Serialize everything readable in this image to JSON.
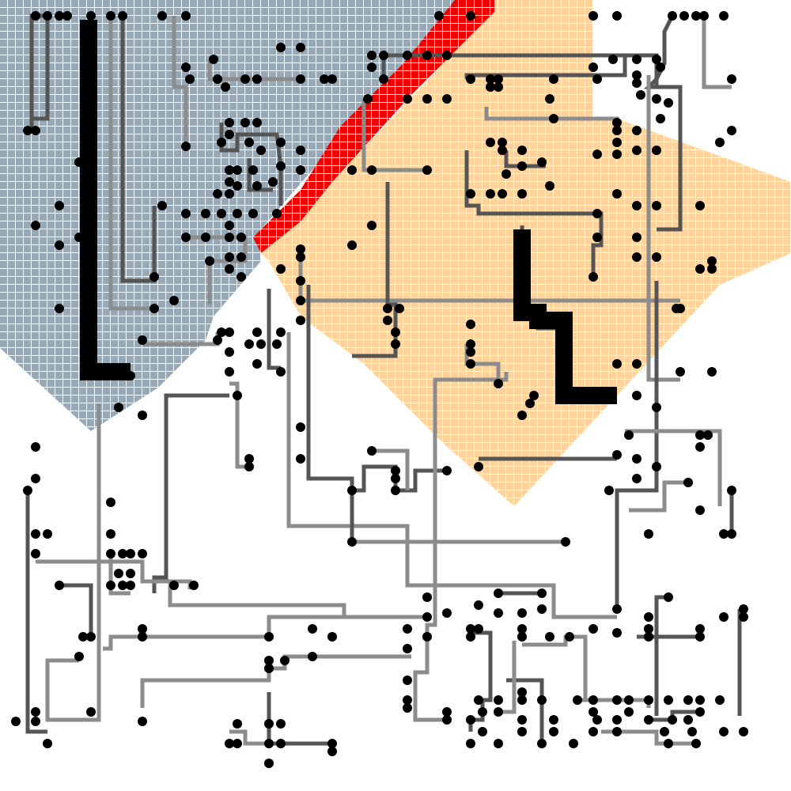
{
  "colors": {
    "background": "#ffffff",
    "region_blue": "#98a8b4",
    "region_orange": "#ffd39b",
    "region_red": "#ee0000",
    "grid_line": "#ffffff",
    "wire_dark": "#555555",
    "wire_light": "#8c8c8c",
    "bus": "#000000",
    "pin": "#000000"
  },
  "regions": [
    {
      "name": "blue-region",
      "color_key": "region_blue"
    },
    {
      "name": "red-region",
      "color_key": "region_red"
    },
    {
      "name": "orange-region",
      "color_key": "region_orange"
    }
  ],
  "wires": [
    {
      "name": "wire-1",
      "tone": "light"
    },
    {
      "name": "wire-2",
      "tone": "dark"
    },
    {
      "name": "wire-3",
      "tone": "light"
    },
    {
      "name": "wire-4",
      "tone": "dark"
    },
    {
      "name": "wire-5",
      "tone": "light"
    },
    {
      "name": "wire-6",
      "tone": "dark"
    },
    {
      "name": "wire-7",
      "tone": "light"
    },
    {
      "name": "wire-8",
      "tone": "dark"
    },
    {
      "name": "wire-9",
      "tone": "light"
    },
    {
      "name": "wire-10",
      "tone": "dark"
    },
    {
      "name": "wire-11",
      "tone": "light"
    },
    {
      "name": "wire-12",
      "tone": "dark"
    },
    {
      "name": "wire-13",
      "tone": "light"
    },
    {
      "name": "wire-14",
      "tone": "dark"
    },
    {
      "name": "wire-15",
      "tone": "light"
    },
    {
      "name": "wire-16",
      "tone": "dark"
    },
    {
      "name": "wire-17",
      "tone": "light"
    },
    {
      "name": "wire-18",
      "tone": "dark"
    },
    {
      "name": "wire-19",
      "tone": "light"
    },
    {
      "name": "wire-20",
      "tone": "dark"
    },
    {
      "name": "wire-21",
      "tone": "light"
    },
    {
      "name": "wire-22",
      "tone": "dark"
    },
    {
      "name": "wire-23",
      "tone": "light"
    },
    {
      "name": "wire-24",
      "tone": "dark"
    },
    {
      "name": "wire-25",
      "tone": "light"
    },
    {
      "name": "wire-26",
      "tone": "dark"
    },
    {
      "name": "wire-27",
      "tone": "light"
    },
    {
      "name": "wire-28",
      "tone": "dark"
    },
    {
      "name": "wire-29",
      "tone": "light"
    },
    {
      "name": "wire-30",
      "tone": "dark"
    },
    {
      "name": "wire-31",
      "tone": "light"
    },
    {
      "name": "wire-32",
      "tone": "dark"
    },
    {
      "name": "wire-33",
      "tone": "light"
    },
    {
      "name": "wire-34",
      "tone": "dark"
    },
    {
      "name": "wire-35",
      "tone": "light"
    },
    {
      "name": "wire-36",
      "tone": "dark"
    },
    {
      "name": "wire-37",
      "tone": "light"
    },
    {
      "name": "wire-38",
      "tone": "dark"
    },
    {
      "name": "wire-39",
      "tone": "light"
    },
    {
      "name": "wire-40",
      "tone": "dark"
    }
  ],
  "buses": [
    {
      "name": "bus-left"
    },
    {
      "name": "bus-right"
    }
  ]
}
